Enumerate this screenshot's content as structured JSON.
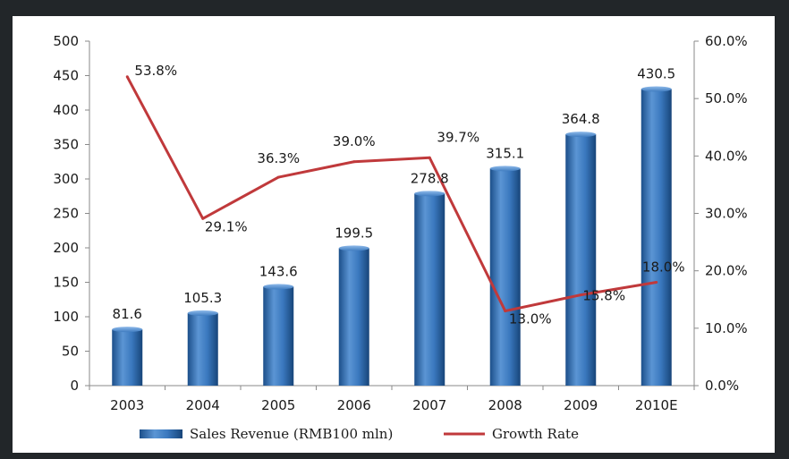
{
  "chart_data": {
    "type": "bar",
    "categories": [
      "2003",
      "2004",
      "2005",
      "2006",
      "2007",
      "2008",
      "2009",
      "2010E"
    ],
    "series": [
      {
        "name": "Sales Revenue (RMB100 mln)",
        "type": "bar",
        "axis": "left",
        "values": [
          81.6,
          105.3,
          143.6,
          199.5,
          278.8,
          315.1,
          364.8,
          430.5
        ],
        "labels": [
          "81.6",
          "105.3",
          "143.6",
          "199.5",
          "278.8",
          "315.1",
          "364.8",
          "430.5"
        ],
        "color": "#2e6fb6"
      },
      {
        "name": "Growth Rate",
        "type": "line",
        "axis": "right",
        "values": [
          53.8,
          29.1,
          36.3,
          39.0,
          39.7,
          13.0,
          15.8,
          18.0
        ],
        "labels": [
          "53.8%",
          "29.1%",
          "36.3%",
          "39.0%",
          "39.7%",
          "13.0%",
          "15.8%",
          "18.0%"
        ],
        "color": "#c0393b"
      }
    ],
    "y_left": {
      "ylim": [
        0,
        500
      ],
      "ticks": [
        "0",
        "50",
        "100",
        "150",
        "200",
        "250",
        "300",
        "350",
        "400",
        "450",
        "500"
      ]
    },
    "y_right": {
      "ylim": [
        0,
        60
      ],
      "ticks": [
        "0.0%",
        "10.0%",
        "20.0%",
        "30.0%",
        "40.0%",
        "50.0%",
        "60.0%"
      ]
    },
    "grid": false,
    "legend_position": "bottom"
  }
}
